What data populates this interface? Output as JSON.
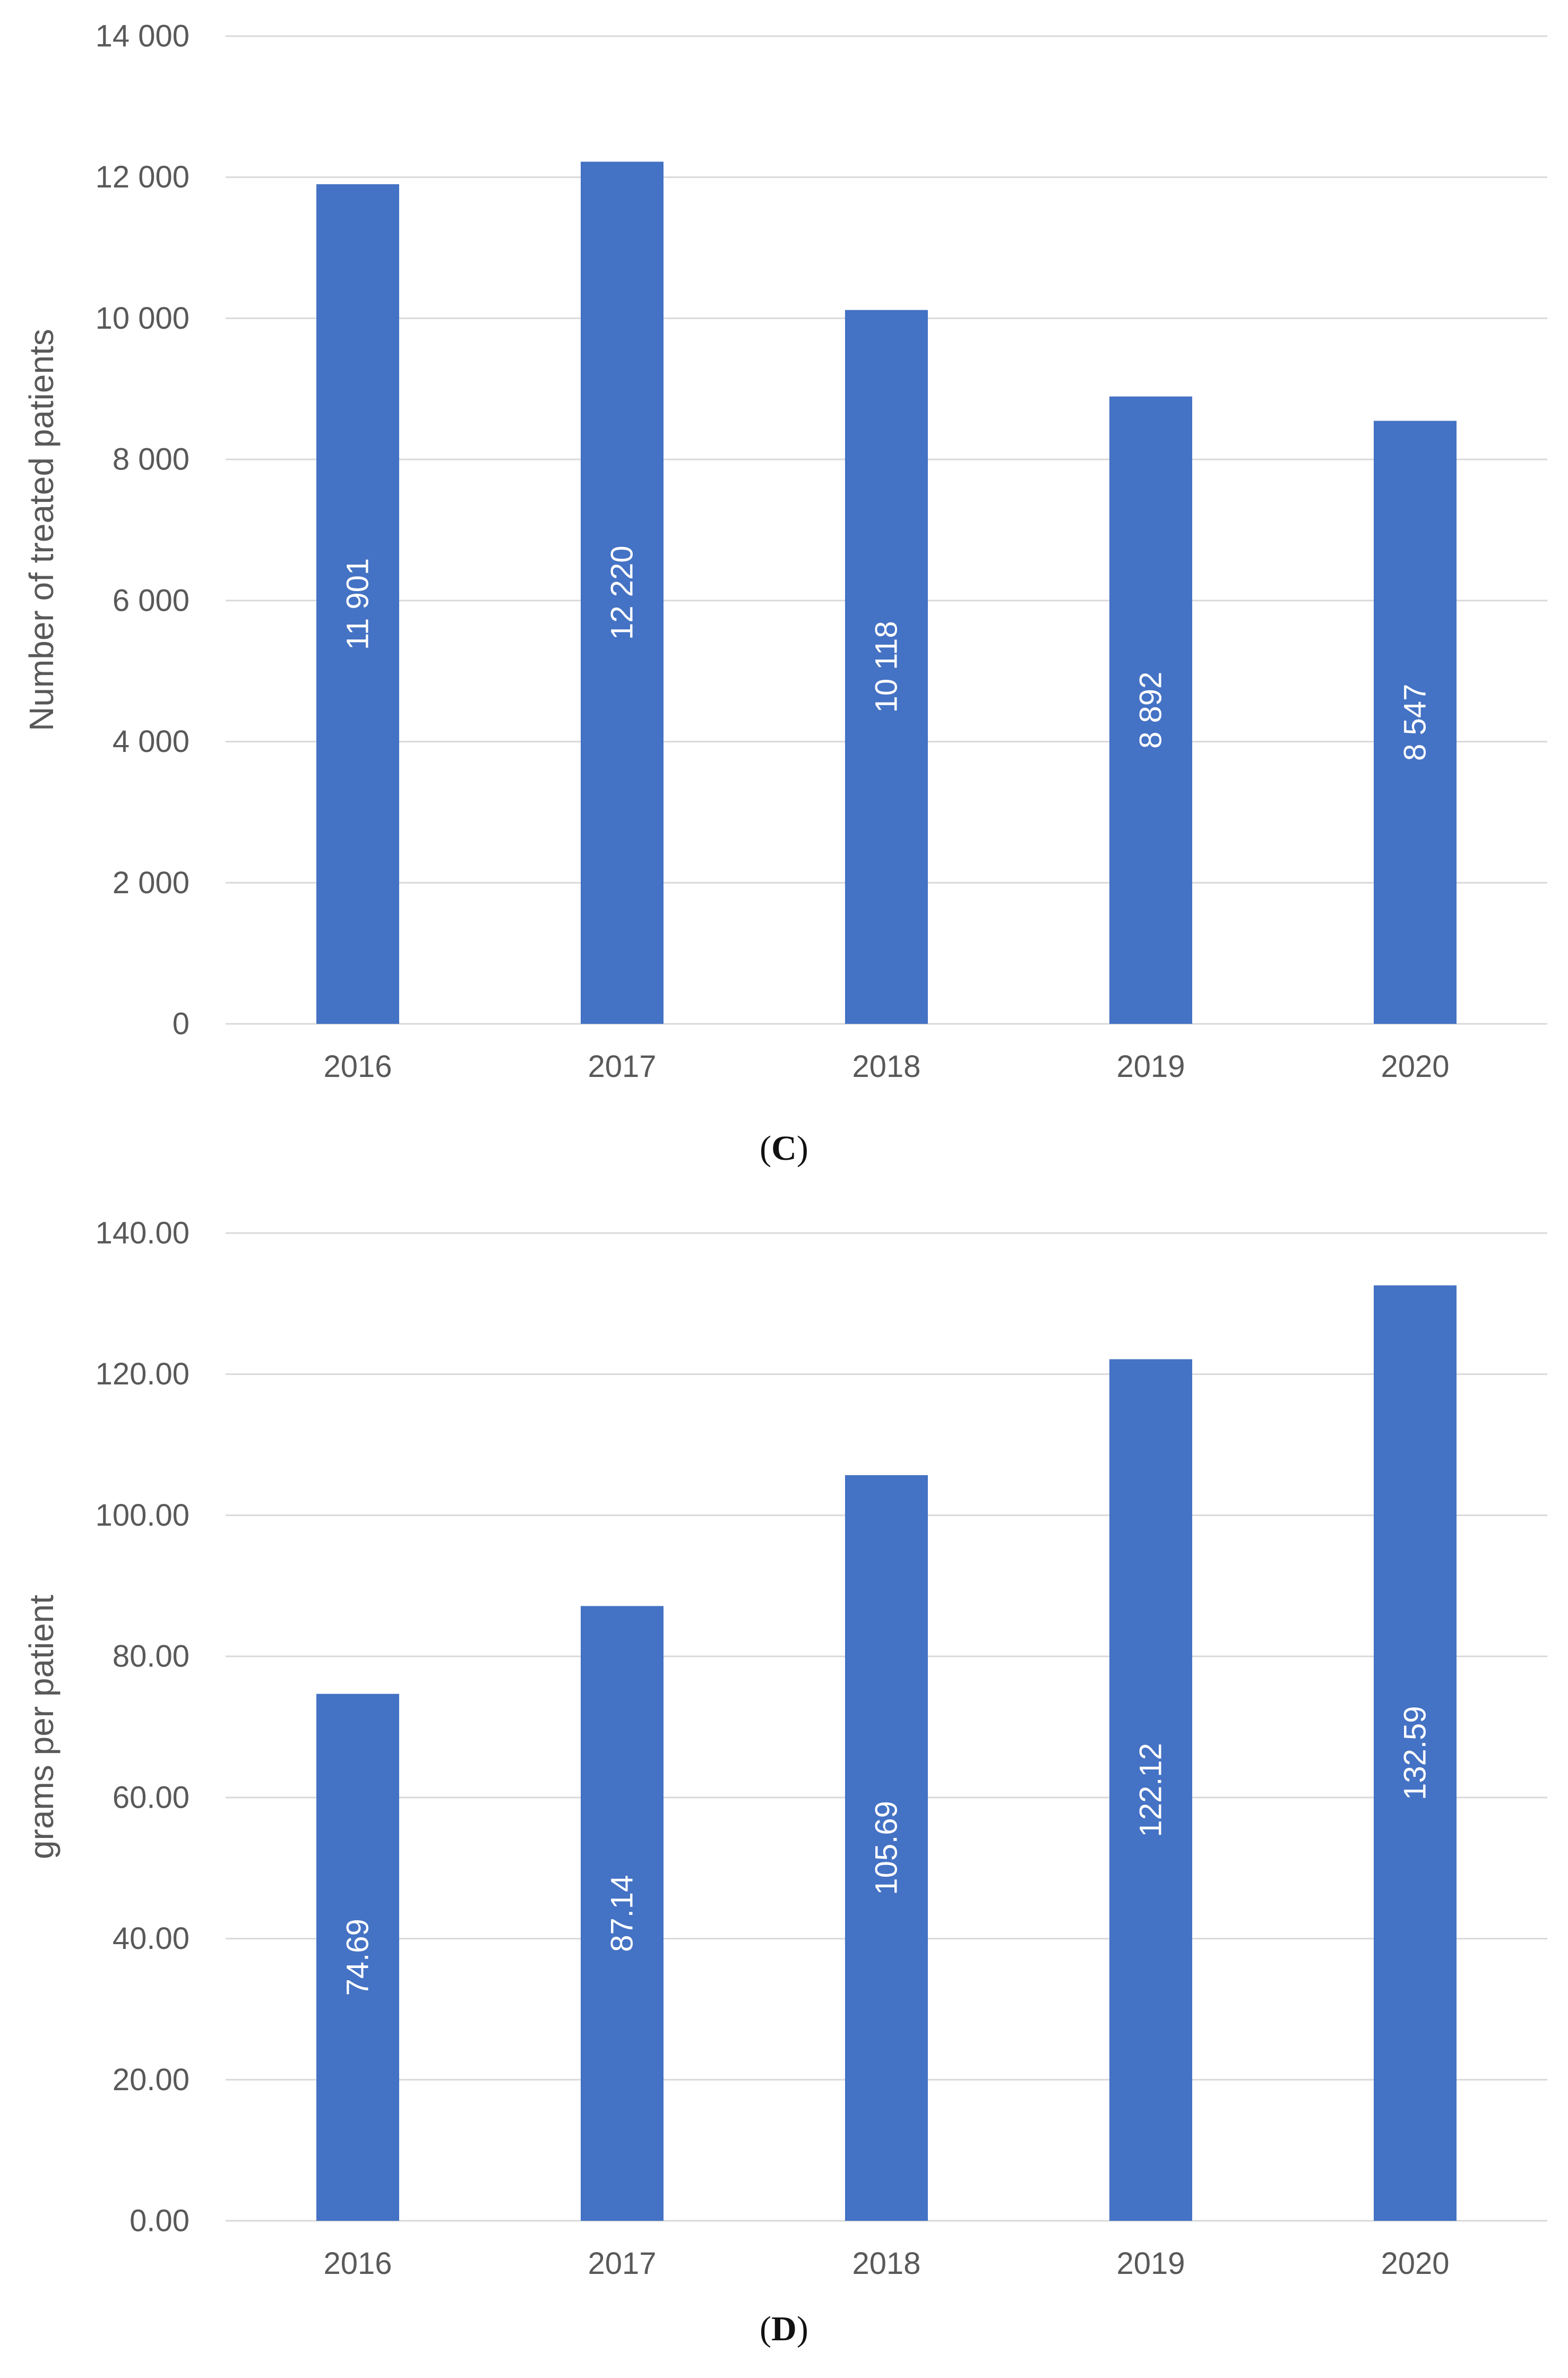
{
  "chart_data": [
    {
      "type": "bar",
      "panel": "C",
      "categories": [
        "2016",
        "2017",
        "2018",
        "2019",
        "2020"
      ],
      "values": [
        11901,
        12220,
        10118,
        8892,
        8547
      ],
      "data_labels": [
        "11 901",
        "12 220",
        "10 118",
        "8 892",
        "8 547"
      ],
      "title": "",
      "xlabel": "",
      "ylabel": "Number of treated patients",
      "ylim": [
        0,
        14000
      ],
      "yticks": [
        0,
        2000,
        4000,
        6000,
        8000,
        10000,
        12000,
        14000
      ],
      "ytick_labels": [
        "0",
        "2 000",
        "4 000",
        "6 000",
        "8 000",
        "10 000",
        "12 000",
        "14 000"
      ],
      "grid": true,
      "legend": "none",
      "bar_color": "#4472C4",
      "grid_color": "#D9D9D9",
      "caption_letter": "C"
    },
    {
      "type": "bar",
      "panel": "D",
      "categories": [
        "2016",
        "2017",
        "2018",
        "2019",
        "2020"
      ],
      "values": [
        74.69,
        87.14,
        105.69,
        122.12,
        132.59
      ],
      "data_labels": [
        "74.69",
        "87.14",
        "105.69",
        "122.12",
        "132.59"
      ],
      "title": "",
      "xlabel": "",
      "ylabel": "grams per patient",
      "ylim": [
        0,
        140
      ],
      "yticks": [
        0,
        20,
        40,
        60,
        80,
        100,
        120,
        140
      ],
      "ytick_labels": [
        "0.00",
        "20.00",
        "40.00",
        "60.00",
        "80.00",
        "100.00",
        "120.00",
        "140.00"
      ],
      "grid": true,
      "legend": "none",
      "bar_color": "#4472C4",
      "grid_color": "#D9D9D9",
      "caption_letter": "D"
    }
  ]
}
